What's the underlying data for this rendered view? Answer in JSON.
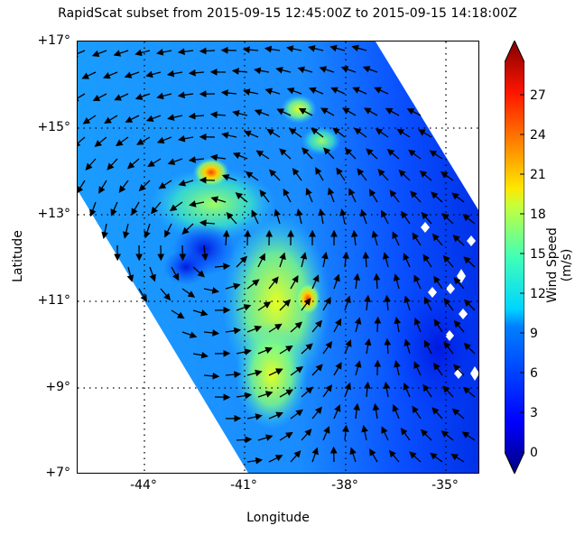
{
  "chart_data": {
    "type": "heatmap",
    "subtype": "wind-vector-field (quiver over gridded wind speed)",
    "title": "RapidScat subset from 2015-09-15 12:45:00Z to 2015-09-15 14:18:00Z",
    "xlabel": "Longitude",
    "ylabel": "Latitude",
    "x_ticks": [
      "-44°",
      "-41°",
      "-38°",
      "-35°"
    ],
    "x_tick_values": [
      -44,
      -41,
      -38,
      -35
    ],
    "y_ticks": [
      "+17°",
      "+15°",
      "+13°",
      "+11°",
      "+9°",
      "+7°"
    ],
    "y_tick_values": [
      17,
      15,
      13,
      11,
      9,
      7
    ],
    "xlim": [
      -46,
      -34
    ],
    "ylim": [
      7,
      17
    ],
    "grid": "dotted",
    "colorbar": {
      "label": "Wind Speed (m/s)",
      "ticks": [
        "0",
        "3",
        "6",
        "9",
        "12",
        "15",
        "18",
        "21",
        "24",
        "27"
      ],
      "range": [
        0,
        30
      ],
      "colormap": "jet",
      "extend": "both",
      "position": "right"
    },
    "features": [
      {
        "name": "swath coverage",
        "description": "diagonal satellite swath from upper-left to lower-right; white (no data) at lower-left and upper-right"
      },
      {
        "name": "max wind spot 1",
        "lon": -42.2,
        "lat": 13.9,
        "speed_ms": 22
      },
      {
        "name": "max wind spot 2",
        "lon": -39.3,
        "lat": 11.1,
        "speed_ms": 22
      },
      {
        "name": "cyclonic circulation center",
        "lon": -41.5,
        "lat": 12.5,
        "description": "counterclockwise rotation; weak winds near center"
      },
      {
        "name": "elevated wind band",
        "lon_range": [
          -41.5,
          -39.5
        ],
        "lat_range": [
          9,
          12.5
        ],
        "speed_ms": 14
      }
    ],
    "background_speed_ms": 8,
    "east_region_speed_ms": 4
  }
}
